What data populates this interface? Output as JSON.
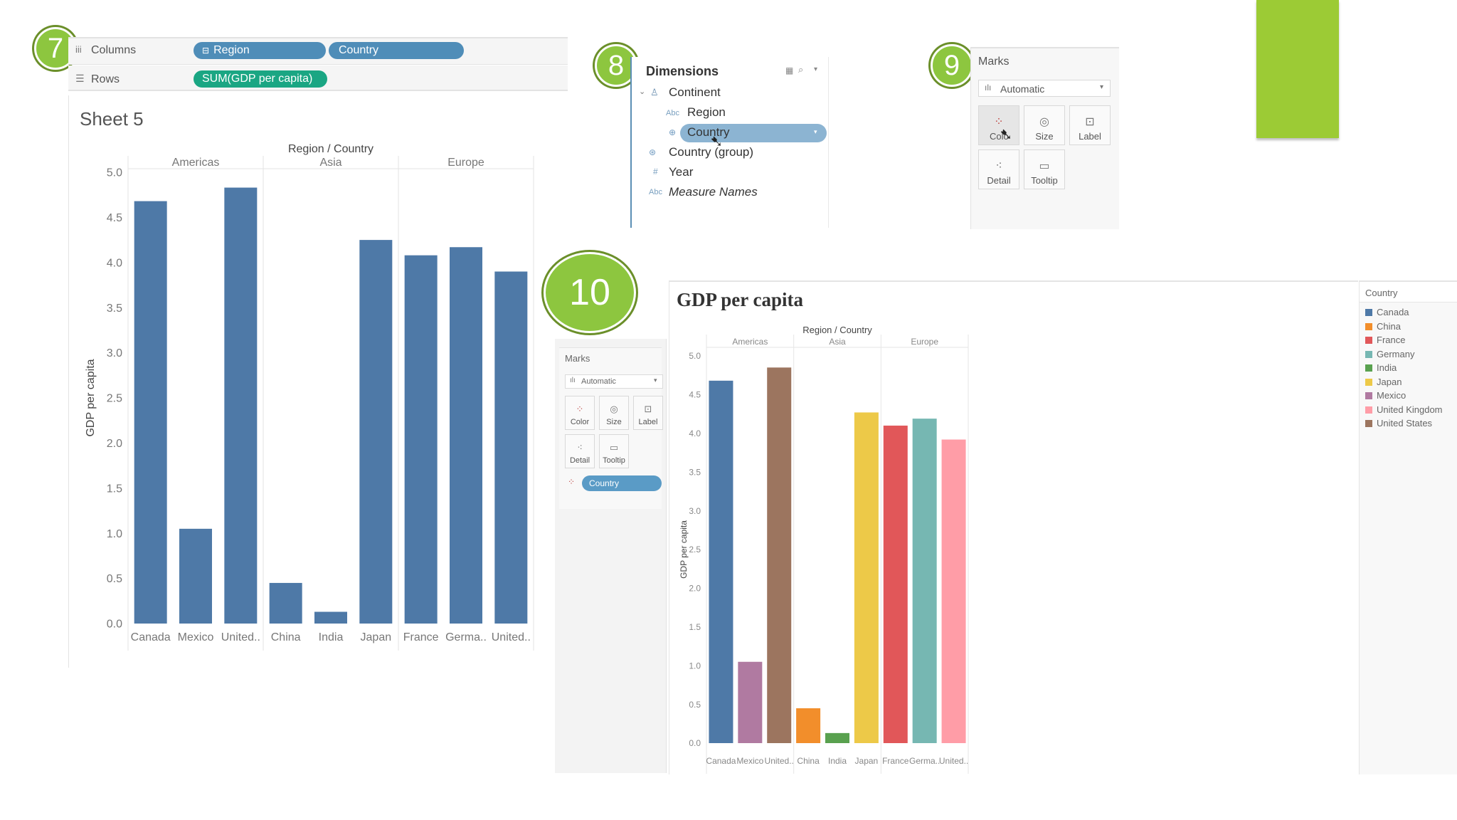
{
  "steps": [
    "7",
    "8",
    "9",
    "10"
  ],
  "panel7": {
    "columns_label": "Columns",
    "rows_label": "Rows",
    "columns_pills": [
      "Region",
      "Country"
    ],
    "rows_pill": "SUM(GDP per capita)",
    "sheet_title": "Sheet 5"
  },
  "panel8": {
    "title": "Dimensions",
    "items": [
      {
        "label": "Continent",
        "icon": "hierarchy-icon"
      },
      {
        "label": "Region",
        "icon": "abc-icon",
        "icon_text": "Abc"
      },
      {
        "label": "Country",
        "icon": "globe-icon",
        "selected": true
      },
      {
        "label": "Country (group)",
        "icon": "group-icon"
      },
      {
        "label": "Year",
        "icon": "hash-icon",
        "icon_text": "#"
      },
      {
        "label": "Measure Names",
        "icon": "abc-icon",
        "icon_text": "Abc"
      }
    ]
  },
  "panel9": {
    "title": "Marks",
    "mark_type": "Automatic",
    "buttons": [
      "Color",
      "Size",
      "Label",
      "Detail",
      "Tooltip"
    ]
  },
  "panel10": {
    "marks_title": "Marks",
    "mark_type": "Automatic",
    "buttons": [
      "Color",
      "Size",
      "Label",
      "Detail",
      "Tooltip"
    ],
    "color_pill": "Country",
    "legend_title": "Country",
    "legend": [
      {
        "name": "Canada",
        "color": "#4e79a7"
      },
      {
        "name": "China",
        "color": "#f28e2b"
      },
      {
        "name": "France",
        "color": "#e15759"
      },
      {
        "name": "Germany",
        "color": "#76b7b2"
      },
      {
        "name": "India",
        "color": "#59a14f"
      },
      {
        "name": "Japan",
        "color": "#edc948"
      },
      {
        "name": "Mexico",
        "color": "#b07aa1"
      },
      {
        "name": "United Kingdom",
        "color": "#ff9da7"
      },
      {
        "name": "United States",
        "color": "#9c755f"
      }
    ]
  },
  "chart_data": [
    {
      "type": "bar",
      "title": "",
      "header": "Region / Country",
      "groups": [
        "Americas",
        "Asia",
        "Europe"
      ],
      "categories": [
        "Canada",
        "Mexico",
        "United..",
        "China",
        "India",
        "Japan",
        "France",
        "Germa..",
        "United.."
      ],
      "values": [
        4.68,
        1.05,
        4.83,
        0.45,
        0.13,
        4.25,
        4.08,
        4.17,
        3.9
      ],
      "ylabel": "GDP per capita",
      "ylim": [
        0,
        5.0
      ],
      "yticks": [
        "0.0",
        "0.5",
        "1.0",
        "1.5",
        "2.0",
        "2.5",
        "3.0",
        "3.5",
        "4.0",
        "4.5",
        "5.0"
      ],
      "color": "#4e79a7"
    },
    {
      "type": "bar",
      "title": "GDP per capita",
      "header": "Region / Country",
      "groups": [
        "Americas",
        "Asia",
        "Europe"
      ],
      "categories": [
        "Canada",
        "Mexico",
        "United..",
        "China",
        "India",
        "Japan",
        "France",
        "Germa..",
        "United.."
      ],
      "values": [
        4.68,
        1.05,
        4.85,
        0.45,
        0.13,
        4.27,
        4.1,
        4.19,
        3.92
      ],
      "colors": [
        "#4e79a7",
        "#b07aa1",
        "#9c755f",
        "#f28e2b",
        "#59a14f",
        "#edc948",
        "#e15759",
        "#76b7b2",
        "#ff9da7"
      ],
      "ylabel": "GDP per capita",
      "ylim": [
        0,
        5.0
      ],
      "yticks": [
        "0.0",
        "0.5",
        "1.0",
        "1.5",
        "2.0",
        "2.5",
        "3.0",
        "3.5",
        "4.0",
        "4.5",
        "5.0"
      ]
    }
  ]
}
